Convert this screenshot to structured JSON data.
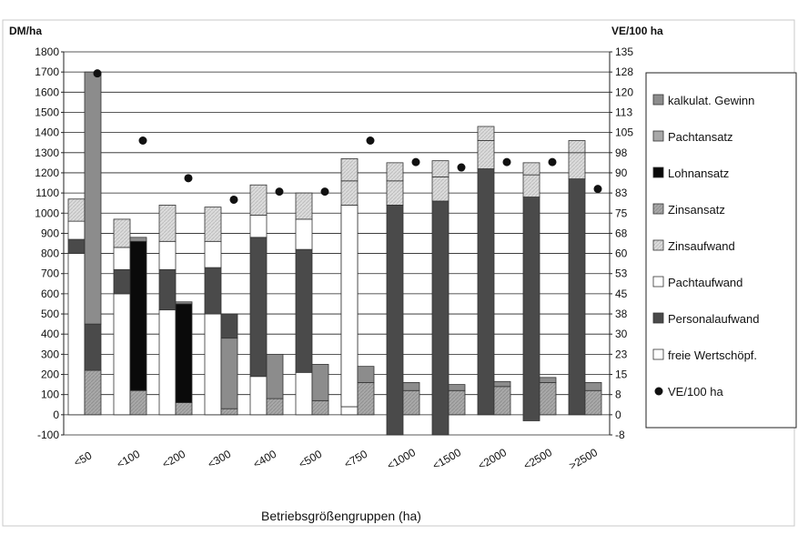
{
  "chart_data": {
    "type": "bar",
    "subtype": "stacked-bar-with-dot-series",
    "y_left_label": "DM/ha",
    "y_right_label": "VE/100 ha",
    "xlabel": "Betriebsgrößengruppen (ha)",
    "categories": [
      "<50",
      "<100",
      "<200",
      "<300",
      "<400",
      "<500",
      "<750",
      "<1000",
      "<1500",
      "<2000",
      "<2500",
      ">2500"
    ],
    "y_left_ticks": [
      "1800",
      "1700",
      "1600",
      "1500",
      "1400",
      "1300",
      "1200",
      "1100",
      "1000",
      "900",
      "800",
      "700",
      "600",
      "500",
      "400",
      "300",
      "200",
      "100",
      "0",
      "-100"
    ],
    "y_right_ticks": [
      "135",
      "128",
      "120",
      "113",
      "105",
      "98",
      "90",
      "83",
      "75",
      "68",
      "60",
      "53",
      "45",
      "38",
      "30",
      "23",
      "15",
      "8",
      "0",
      "-8"
    ],
    "ylim_left": [
      -100,
      1800
    ],
    "ylim_right": [
      -7.5,
      135
    ],
    "grid": true,
    "legend_position": "right",
    "colors": {
      "kalkulat_gewinn": "#8c8c8c",
      "pachtansatz": "#a8a8a8",
      "lohnansatz": "#0a0a0a",
      "zinsansatz": "#9a9a9a",
      "zinsaufwand": "#d6d6d6",
      "pachtaufwand": "#ffffff",
      "personalaufwand": "#4a4a4a",
      "freie_wertschoepf": "#ffffff",
      "ve_dot": "#111111"
    },
    "legend": [
      {
        "label": "kalkulat. Gewinn",
        "key": "kalkulat_gewinn",
        "shape": "square"
      },
      {
        "label": "Pachtansatz",
        "key": "pachtansatz",
        "shape": "square"
      },
      {
        "label": "Lohnansatz",
        "key": "lohnansatz",
        "shape": "square"
      },
      {
        "label": "Zinsansatz",
        "key": "zinsansatz",
        "shape": "square"
      },
      {
        "label": "Zinsaufwand",
        "key": "zinsaufwand",
        "shape": "square"
      },
      {
        "label": "Pachtaufwand",
        "key": "pachtaufwand",
        "shape": "square"
      },
      {
        "label": "Personalaufwand",
        "key": "personalaufwand",
        "shape": "square"
      },
      {
        "label": "freie Wertschöpf.",
        "key": "freie_wertschoepf",
        "shape": "square"
      },
      {
        "label": "VE/100 ha",
        "key": "ve_dot",
        "shape": "dot"
      }
    ],
    "left_bars": [
      {
        "category": "<50",
        "segments": [
          {
            "key": "freie_wertschoepf",
            "from": 0,
            "to": 800
          },
          {
            "key": "personalaufwand",
            "from": 800,
            "to": 870
          },
          {
            "key": "pachtaufwand",
            "from": 870,
            "to": 960
          },
          {
            "key": "zinsaufwand",
            "from": 960,
            "to": 1070
          }
        ]
      },
      {
        "category": "<100",
        "segments": [
          {
            "key": "freie_wertschoepf",
            "from": 0,
            "to": 600
          },
          {
            "key": "personalaufwand",
            "from": 600,
            "to": 720
          },
          {
            "key": "pachtaufwand",
            "from": 720,
            "to": 830
          },
          {
            "key": "zinsaufwand",
            "from": 830,
            "to": 970
          }
        ]
      },
      {
        "category": "<200",
        "segments": [
          {
            "key": "freie_wertschoepf",
            "from": 0,
            "to": 520
          },
          {
            "key": "personalaufwand",
            "from": 520,
            "to": 720
          },
          {
            "key": "pachtaufwand",
            "from": 720,
            "to": 860
          },
          {
            "key": "zinsaufwand",
            "from": 860,
            "to": 1040
          }
        ]
      },
      {
        "category": "<300",
        "segments": [
          {
            "key": "freie_wertschoepf",
            "from": 0,
            "to": 500
          },
          {
            "key": "personalaufwand",
            "from": 500,
            "to": 730
          },
          {
            "key": "pachtaufwand",
            "from": 730,
            "to": 860
          },
          {
            "key": "zinsaufwand",
            "from": 860,
            "to": 1030
          }
        ]
      },
      {
        "category": "<400",
        "segments": [
          {
            "key": "freie_wertschoepf",
            "from": 0,
            "to": 190
          },
          {
            "key": "personalaufwand",
            "from": 190,
            "to": 880
          },
          {
            "key": "pachtaufwand",
            "from": 880,
            "to": 990
          },
          {
            "key": "zinsaufwand",
            "from": 990,
            "to": 1140
          }
        ]
      },
      {
        "category": "<500",
        "segments": [
          {
            "key": "freie_wertschoepf",
            "from": 0,
            "to": 210
          },
          {
            "key": "personalaufwand",
            "from": 210,
            "to": 820
          },
          {
            "key": "pachtaufwand",
            "from": 820,
            "to": 970
          },
          {
            "key": "zinsaufwand",
            "from": 970,
            "to": 1100
          }
        ]
      },
      {
        "category": "<750",
        "segments": [
          {
            "key": "freie_wertschoepf",
            "from": 0,
            "to": 40
          },
          {
            "key": "personalaufwand",
            "from": 40,
            "to": 1040
          },
          {
            "key": "pachtaufwand",
            "from": 40,
            "to": 1040
          },
          {
            "key": "zinsaufwand",
            "from": 1040,
            "to": 1160
          },
          {
            "key": "zinsaufwand",
            "from": 1160,
            "to": 1270
          }
        ]
      },
      {
        "category": "<1000",
        "segments": [
          {
            "key": "personalaufwand",
            "from": -100,
            "to": 1040
          },
          {
            "key": "zinsaufwand",
            "from": 1040,
            "to": 1160
          },
          {
            "key": "zinsaufwand",
            "from": 1160,
            "to": 1250
          }
        ]
      },
      {
        "category": "<1500",
        "segments": [
          {
            "key": "personalaufwand",
            "from": -100,
            "to": 1060
          },
          {
            "key": "zinsaufwand",
            "from": 1060,
            "to": 1180
          },
          {
            "key": "zinsaufwand",
            "from": 1180,
            "to": 1260
          }
        ]
      },
      {
        "category": "<2000",
        "segments": [
          {
            "key": "personalaufwand",
            "from": 0,
            "to": 1220
          },
          {
            "key": "zinsaufwand",
            "from": 1220,
            "to": 1360
          },
          {
            "key": "zinsaufwand",
            "from": 1360,
            "to": 1430
          }
        ]
      },
      {
        "category": "<2500",
        "segments": [
          {
            "key": "personalaufwand",
            "from": -30,
            "to": 1080
          },
          {
            "key": "zinsaufwand",
            "from": 1080,
            "to": 1190
          },
          {
            "key": "zinsaufwand",
            "from": 1190,
            "to": 1250
          }
        ]
      },
      {
        "category": ">2500",
        "segments": [
          {
            "key": "personalaufwand",
            "from": 0,
            "to": 1170
          },
          {
            "key": "zinsaufwand",
            "from": 1170,
            "to": 1300
          },
          {
            "key": "zinsaufwand",
            "from": 1300,
            "to": 1360
          }
        ]
      }
    ],
    "right_bars": [
      {
        "category": "<50",
        "segments": [
          {
            "key": "zinsansatz",
            "from": 0,
            "to": 220
          },
          {
            "key": "personalaufwand",
            "from": 220,
            "to": 450
          },
          {
            "key": "lohnansatz",
            "from": 450,
            "to": 450
          },
          {
            "key": "kalkulat_gewinn",
            "from": 450,
            "to": 1700
          }
        ]
      },
      {
        "category": "<100",
        "segments": [
          {
            "key": "zinsansatz",
            "from": 0,
            "to": 120
          },
          {
            "key": "lohnansatz",
            "from": 120,
            "to": 860
          },
          {
            "key": "kalkulat_gewinn",
            "from": 860,
            "to": 880
          }
        ]
      },
      {
        "category": "<200",
        "segments": [
          {
            "key": "zinsansatz",
            "from": 0,
            "to": 60
          },
          {
            "key": "lohnansatz",
            "from": 60,
            "to": 550
          },
          {
            "key": "kalkulat_gewinn",
            "from": 550,
            "to": 560
          }
        ]
      },
      {
        "category": "<300",
        "segments": [
          {
            "key": "zinsansatz",
            "from": 0,
            "to": 30
          },
          {
            "key": "kalkulat_gewinn",
            "from": 30,
            "to": 380
          },
          {
            "key": "personalaufwand",
            "from": 380,
            "to": 500
          }
        ]
      },
      {
        "category": "<400",
        "segments": [
          {
            "key": "zinsansatz",
            "from": 0,
            "to": 80
          },
          {
            "key": "kalkulat_gewinn",
            "from": 80,
            "to": 300
          }
        ]
      },
      {
        "category": "<500",
        "segments": [
          {
            "key": "zinsansatz",
            "from": 0,
            "to": 70
          },
          {
            "key": "kalkulat_gewinn",
            "from": 70,
            "to": 250
          }
        ]
      },
      {
        "category": "<750",
        "segments": [
          {
            "key": "zinsansatz",
            "from": 0,
            "to": 160
          },
          {
            "key": "kalkulat_gewinn",
            "from": 160,
            "to": 240
          }
        ]
      },
      {
        "category": "<1000",
        "segments": [
          {
            "key": "zinsansatz",
            "from": 0,
            "to": 120
          },
          {
            "key": "kalkulat_gewinn",
            "from": 120,
            "to": 160
          }
        ]
      },
      {
        "category": "<1500",
        "segments": [
          {
            "key": "zinsansatz",
            "from": 0,
            "to": 120
          },
          {
            "key": "kalkulat_gewinn",
            "from": 120,
            "to": 150
          }
        ]
      },
      {
        "category": "<2000",
        "segments": [
          {
            "key": "zinsansatz",
            "from": 0,
            "to": 140
          },
          {
            "key": "kalkulat_gewinn",
            "from": 140,
            "to": 165
          }
        ]
      },
      {
        "category": "<2500",
        "segments": [
          {
            "key": "zinsansatz",
            "from": 0,
            "to": 160
          },
          {
            "key": "kalkulat_gewinn",
            "from": 160,
            "to": 185
          }
        ]
      },
      {
        "category": ">2500",
        "segments": [
          {
            "key": "zinsansatz",
            "from": 0,
            "to": 120
          },
          {
            "key": "kalkulat_gewinn",
            "from": 120,
            "to": 160
          }
        ]
      }
    ],
    "ve_series": {
      "name": "VE/100 ha",
      "values": [
        127,
        102,
        88,
        80,
        83,
        83,
        102,
        94,
        92,
        94,
        94,
        84
      ]
    }
  }
}
